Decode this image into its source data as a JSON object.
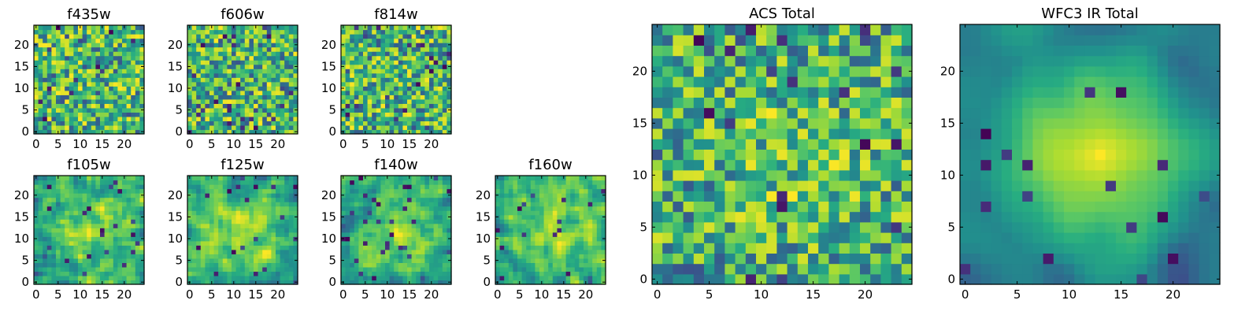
{
  "chart_data": [
    {
      "type": "heatmap",
      "title": "f435w",
      "colormap": "viridis",
      "grid_size": 25,
      "seed": 11,
      "smooth": 0,
      "bias": 0.0,
      "xticks": [
        0,
        5,
        10,
        15,
        20
      ],
      "yticks": [
        0,
        5,
        10,
        15,
        20
      ],
      "xlim": [
        0,
        24
      ],
      "ylim": [
        0,
        24
      ]
    },
    {
      "type": "heatmap",
      "title": "f606w",
      "colormap": "viridis",
      "grid_size": 25,
      "seed": 23,
      "smooth": 0,
      "bias": 0.0,
      "xticks": [
        0,
        5,
        10,
        15,
        20
      ],
      "yticks": [
        0,
        5,
        10,
        15,
        20
      ],
      "xlim": [
        0,
        24
      ],
      "ylim": [
        0,
        24
      ]
    },
    {
      "type": "heatmap",
      "title": "f814w",
      "colormap": "viridis",
      "grid_size": 25,
      "seed": 37,
      "smooth": 0,
      "bias": 0.0,
      "xticks": [
        0,
        5,
        10,
        15,
        20
      ],
      "yticks": [
        0,
        5,
        10,
        15,
        20
      ],
      "xlim": [
        0,
        24
      ],
      "ylim": [
        0,
        24
      ]
    },
    {
      "type": "heatmap",
      "title": "f105w",
      "colormap": "viridis",
      "grid_size": 25,
      "seed": 41,
      "smooth": 1,
      "bias": 0.25,
      "xticks": [
        0,
        5,
        10,
        15,
        20
      ],
      "yticks": [
        0,
        5,
        10,
        15,
        20
      ],
      "xlim": [
        0,
        24
      ],
      "ylim": [
        0,
        24
      ]
    },
    {
      "type": "heatmap",
      "title": "f125w",
      "colormap": "viridis",
      "grid_size": 25,
      "seed": 53,
      "smooth": 1,
      "bias": 0.25,
      "xticks": [
        0,
        5,
        10,
        15,
        20
      ],
      "yticks": [
        0,
        5,
        10,
        15,
        20
      ],
      "xlim": [
        0,
        24
      ],
      "ylim": [
        0,
        24
      ]
    },
    {
      "type": "heatmap",
      "title": "f140w",
      "colormap": "viridis",
      "grid_size": 25,
      "seed": 67,
      "smooth": 1,
      "bias": 0.25,
      "xticks": [
        0,
        5,
        10,
        15,
        20
      ],
      "yticks": [
        0,
        5,
        10,
        15,
        20
      ],
      "xlim": [
        0,
        24
      ],
      "ylim": [
        0,
        24
      ]
    },
    {
      "type": "heatmap",
      "title": "f160w",
      "colormap": "viridis",
      "grid_size": 25,
      "seed": 79,
      "smooth": 1,
      "bias": 0.25,
      "xticks": [
        0,
        5,
        10,
        15,
        20
      ],
      "yticks": [
        0,
        5,
        10,
        15,
        20
      ],
      "xlim": [
        0,
        24
      ],
      "ylim": [
        0,
        24
      ]
    },
    {
      "type": "heatmap",
      "title": "ACS Total",
      "colormap": "viridis",
      "grid_size": 25,
      "seed": 97,
      "smooth": 0,
      "bias": 0.15,
      "xticks": [
        0,
        5,
        10,
        15,
        20
      ],
      "yticks": [
        0,
        5,
        10,
        15,
        20
      ],
      "xlim": [
        0,
        24
      ],
      "ylim": [
        0,
        24
      ]
    },
    {
      "type": "heatmap",
      "title": "WFC3 IR Total",
      "colormap": "viridis",
      "grid_size": 25,
      "seed": 131,
      "smooth": 3,
      "bias": 0.9,
      "xticks": [
        0,
        5,
        10,
        15,
        20
      ],
      "yticks": [
        0,
        5,
        10,
        15,
        20
      ],
      "xlim": [
        0,
        24
      ],
      "ylim": [
        0,
        24
      ]
    }
  ]
}
